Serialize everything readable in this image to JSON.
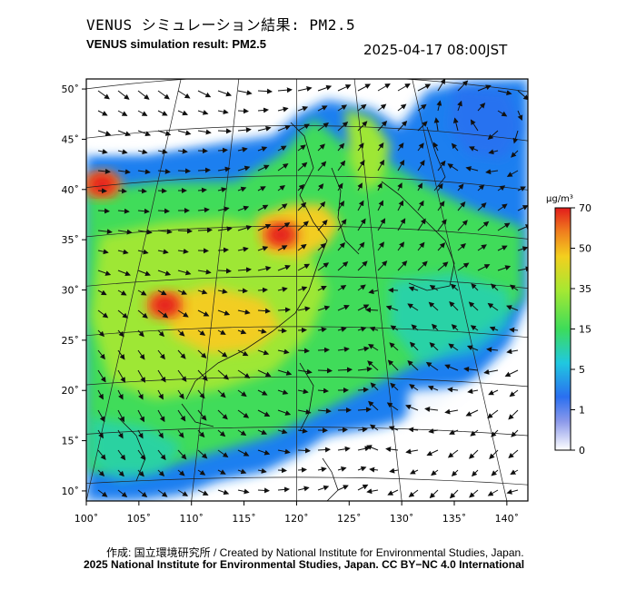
{
  "header": {
    "title_jp": "VENUS シミュレーション結果: PM2.5",
    "title_en": "VENUS simulation result: PM2.5",
    "timestamp": "2025-04-17 08:00JST"
  },
  "map": {
    "lon_ticks": [
      "100˚",
      "105˚",
      "110˚",
      "115˚",
      "120˚",
      "125˚",
      "130˚",
      "135˚",
      "140˚"
    ],
    "lat_ticks": [
      "50˚",
      "45˚",
      "40˚",
      "35˚",
      "30˚",
      "25˚",
      "20˚",
      "15˚",
      "10˚"
    ],
    "lon_range": [
      100,
      142
    ],
    "lat_range": [
      9,
      51
    ],
    "hotspots": [
      {
        "name": "north-china-plain",
        "lon": 118.5,
        "lat": 35.5,
        "level_ug_m3": 65
      },
      {
        "name": "sichuan-basin",
        "lon": 107.5,
        "lat": 28.5,
        "level_ug_m3": 60
      },
      {
        "name": "northwest-edge",
        "lon": 101.5,
        "lat": 40.5,
        "level_ug_m3": 60
      }
    ]
  },
  "colorbar": {
    "unit": "μg/m³",
    "ticks": [
      "70",
      "50",
      "35",
      "15",
      "5",
      "1",
      "0"
    ],
    "colors": [
      "#ffffff",
      "#5a70e8",
      "#1e88f0",
      "#22cfc0",
      "#44dd44",
      "#a5e832",
      "#f2d21e",
      "#f07a1e",
      "#e51e1e"
    ]
  },
  "footer": {
    "credit_line": "作成: 国立環境研究所 / Created by National Institute for Environmental Studies, Japan.",
    "license_line": "2025 National Institute for Environmental Studies, Japan. CC BY−NC 4.0 International"
  }
}
